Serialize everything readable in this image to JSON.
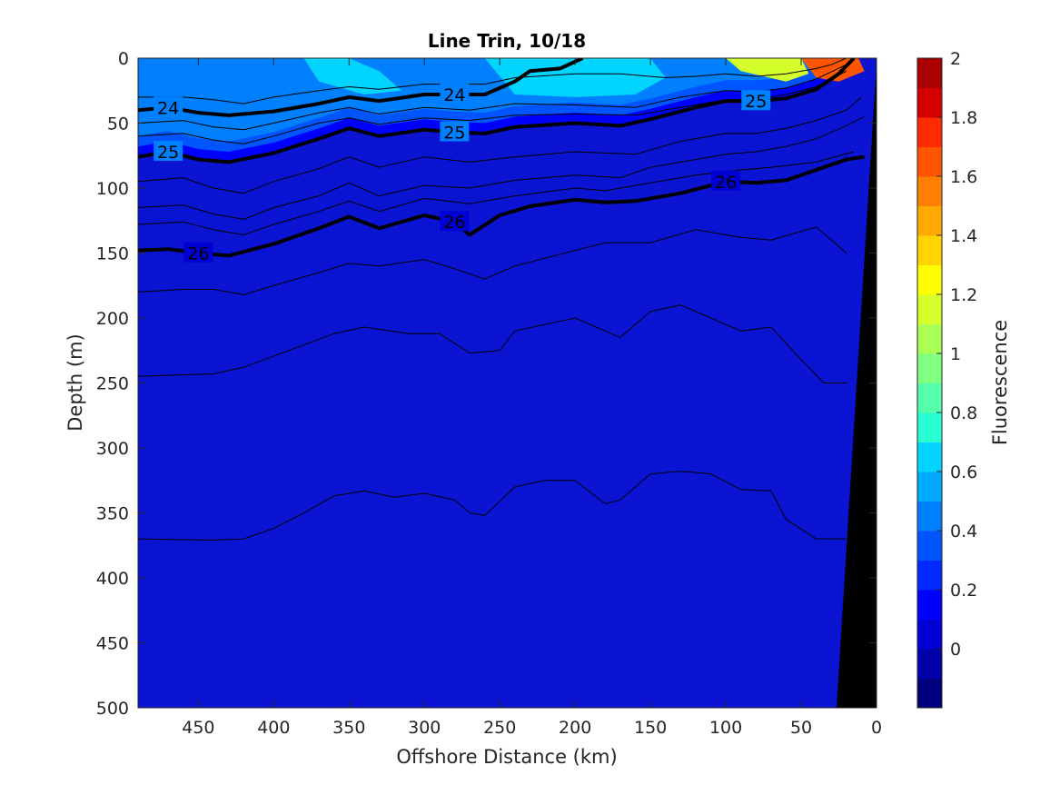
{
  "chart_data": {
    "type": "contourf",
    "title": "Line Trin, 10/18",
    "xlabel": "Offshore Distance (km)",
    "ylabel": "Depth (m)",
    "colorbar_label": "Fluorescence",
    "xlim": [
      490,
      0
    ],
    "ylim": [
      0,
      500
    ],
    "x_reversed": true,
    "y_reversed": true,
    "x_ticks": [
      450,
      400,
      350,
      300,
      250,
      200,
      150,
      100,
      50,
      0
    ],
    "y_ticks": [
      0,
      50,
      100,
      150,
      200,
      250,
      300,
      350,
      400,
      450,
      500
    ],
    "colorbar_range": [
      -0.2,
      2
    ],
    "colorbar_ticks": [
      0,
      0.2,
      0.4,
      0.6,
      0.8,
      1,
      1.2,
      1.4,
      1.6,
      1.8,
      2
    ],
    "colorbar_tick_labels": [
      "0",
      "0.2",
      "0.4",
      "0.6",
      "0.8",
      "1",
      "1.2",
      "1.4",
      "1.6",
      "1.8",
      "2"
    ],
    "colorbar_colors": [
      "#00007f",
      "#0000aa",
      "#0000d4",
      "#0000ff",
      "#002aff",
      "#0055ff",
      "#0080ff",
      "#00aaff",
      "#00d4ff",
      "#2affd4",
      "#55ffaa",
      "#80ff80",
      "#aaff55",
      "#d4ff2a",
      "#ffff00",
      "#ffd400",
      "#ffaa00",
      "#ff8000",
      "#ff5500",
      "#ff2a00",
      "#d40000",
      "#aa0000"
    ],
    "background_color": "#0a14d2",
    "bathymetry_color": "#000000",
    "isopycnals": [
      {
        "label": "24",
        "x": [
          490,
          470,
          450,
          430,
          400,
          370,
          350,
          330,
          300,
          280,
          260,
          240,
          230,
          210,
          195
        ],
        "y": [
          40,
          38,
          42,
          44,
          41,
          35,
          30,
          33,
          28,
          28,
          28,
          18,
          10,
          8,
          0
        ]
      },
      {
        "label": "25",
        "x": [
          490,
          470,
          450,
          430,
          400,
          370,
          350,
          330,
          300,
          280,
          260,
          240,
          200,
          170,
          150,
          120,
          100,
          80,
          60,
          40,
          25,
          15
        ],
        "y": [
          76,
          72,
          78,
          80,
          73,
          62,
          54,
          60,
          55,
          57,
          58,
          53,
          50,
          52,
          47,
          38,
          33,
          33,
          31,
          24,
          12,
          0
        ]
      },
      {
        "label": "26",
        "x": [
          490,
          470,
          450,
          430,
          400,
          370,
          350,
          330,
          300,
          280,
          270,
          250,
          230,
          200,
          180,
          160,
          130,
          100,
          80,
          60,
          40,
          20,
          8
        ],
        "y": [
          148,
          147,
          150,
          152,
          143,
          131,
          122,
          131,
          121,
          126,
          136,
          121,
          114,
          109,
          111,
          110,
          104,
          95,
          96,
          94,
          86,
          78,
          76
        ]
      }
    ],
    "contour_lines": [
      {
        "x": [
          490,
          460,
          440,
          420,
          400,
          370,
          350,
          330,
          300,
          280,
          260,
          240,
          200,
          170,
          140,
          120,
          100,
          80,
          60,
          40,
          30,
          20
        ],
        "y": [
          30,
          30,
          32,
          35,
          30,
          25,
          22,
          24,
          20,
          20,
          20,
          15,
          12,
          12,
          15,
          14,
          12,
          14,
          12,
          8,
          5,
          0
        ]
      },
      {
        "x": [
          490,
          460,
          440,
          420,
          400,
          370,
          350,
          330,
          300,
          270,
          240,
          200,
          160,
          130,
          100,
          80,
          60,
          40,
          20
        ],
        "y": [
          50,
          48,
          53,
          55,
          50,
          42,
          38,
          43,
          38,
          40,
          35,
          36,
          38,
          30,
          25,
          26,
          23,
          16,
          5
        ]
      },
      {
        "x": [
          490,
          460,
          440,
          420,
          400,
          370,
          350,
          330,
          300,
          270,
          240,
          200,
          160,
          130,
          100,
          80,
          60,
          40,
          20
        ],
        "y": [
          60,
          58,
          63,
          66,
          60,
          50,
          46,
          51,
          46,
          48,
          44,
          43,
          44,
          38,
          32,
          32,
          28,
          22,
          10
        ]
      },
      {
        "x": [
          490,
          460,
          440,
          420,
          400,
          370,
          350,
          330,
          300,
          270,
          240,
          200,
          160,
          130,
          100,
          80,
          60,
          40,
          20,
          10
        ],
        "y": [
          95,
          92,
          100,
          104,
          95,
          85,
          76,
          84,
          76,
          80,
          76,
          72,
          74,
          64,
          58,
          58,
          54,
          48,
          40,
          30
        ]
      },
      {
        "x": [
          490,
          460,
          440,
          420,
          400,
          370,
          350,
          330,
          300,
          270,
          240,
          200,
          170,
          150,
          130,
          100,
          80,
          60,
          40,
          20,
          8
        ],
        "y": [
          115,
          113,
          120,
          124,
          115,
          106,
          96,
          106,
          98,
          100,
          94,
          90,
          92,
          84,
          80,
          74,
          72,
          68,
          62,
          52,
          45
        ]
      },
      {
        "x": [
          490,
          460,
          440,
          420,
          400,
          370,
          350,
          330,
          300,
          270,
          240,
          200,
          180,
          150,
          120,
          90,
          70,
          40,
          15
        ],
        "y": [
          128,
          126,
          132,
          136,
          128,
          118,
          110,
          118,
          108,
          112,
          106,
          100,
          102,
          96,
          90,
          86,
          84,
          80,
          72
        ]
      },
      {
        "x": [
          490,
          460,
          440,
          420,
          400,
          370,
          350,
          330,
          300,
          280,
          260,
          240,
          200,
          180,
          150,
          120,
          90,
          70,
          40,
          20
        ],
        "y": [
          180,
          178,
          178,
          182,
          175,
          165,
          158,
          160,
          155,
          162,
          170,
          160,
          148,
          142,
          142,
          132,
          138,
          140,
          130,
          150
        ]
      },
      {
        "x": [
          490,
          440,
          420,
          390,
          360,
          340,
          310,
          290,
          270,
          250,
          240,
          200,
          180,
          170,
          150,
          130,
          110,
          90,
          70,
          50,
          35,
          20
        ],
        "y": [
          245,
          243,
          238,
          225,
          212,
          207,
          212,
          212,
          227,
          225,
          210,
          200,
          210,
          215,
          195,
          190,
          200,
          210,
          207,
          232,
          250,
          250
        ]
      },
      {
        "x": [
          490,
          440,
          420,
          400,
          380,
          360,
          340,
          320,
          300,
          280,
          270,
          260,
          240,
          220,
          200,
          180,
          170,
          150,
          130,
          110,
          90,
          70,
          60,
          40,
          20
        ],
        "y": [
          370,
          371,
          370,
          362,
          350,
          337,
          333,
          338,
          335,
          340,
          350,
          352,
          330,
          325,
          325,
          343,
          340,
          320,
          318,
          320,
          332,
          333,
          355,
          370,
          370
        ]
      }
    ],
    "patches": [
      {
        "level": 0.6,
        "x": [
          380,
          350,
          330,
          315,
          340,
          370
        ],
        "y": [
          0,
          0,
          10,
          25,
          28,
          18
        ]
      },
      {
        "level": 0.7,
        "x": [
          260,
          220,
          180,
          150,
          140,
          160,
          200,
          240
        ],
        "y": [
          0,
          0,
          0,
          0,
          15,
          28,
          30,
          28
        ]
      },
      {
        "level": 1.2,
        "x": [
          100,
          70,
          50,
          45,
          60,
          90
        ],
        "y": [
          0,
          0,
          0,
          12,
          18,
          10
        ]
      },
      {
        "level": 1.6,
        "x": [
          50,
          30,
          12,
          8,
          25,
          40
        ],
        "y": [
          0,
          0,
          0,
          10,
          18,
          15
        ]
      }
    ]
  }
}
